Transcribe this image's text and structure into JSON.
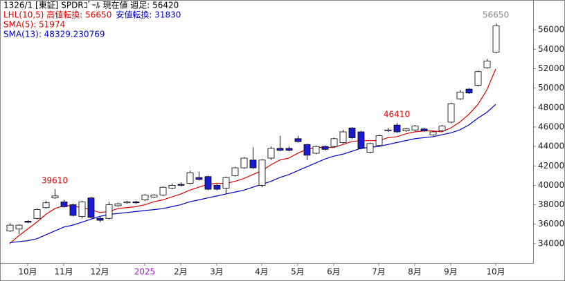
{
  "chart_data": {
    "type": "candlestick",
    "title": "1326/1 [東証] SPDRｺﾞｰﾙ 現在値 週足: 56420",
    "indicator_line": {
      "high": {
        "text": "LHL(10,5) 高値転換: 56650",
        "color": "#e00000"
      },
      "low": {
        "text": "安値転換: 31830",
        "color": "#0000cc"
      }
    },
    "categories": [
      null,
      null,
      "10月",
      null,
      null,
      null,
      "11月",
      null,
      null,
      null,
      "12月",
      null,
      null,
      null,
      null,
      "2025",
      null,
      null,
      null,
      "2月",
      null,
      null,
      null,
      "3月",
      null,
      null,
      null,
      null,
      "4月",
      null,
      null,
      null,
      "5月",
      null,
      null,
      null,
      "6月",
      null,
      null,
      null,
      null,
      "7月",
      null,
      null,
      null,
      "8月",
      null,
      null,
      null,
      "9月",
      null,
      null,
      null,
      null,
      "10月"
    ],
    "open": [
      35300,
      35500,
      36300,
      36600,
      37700,
      38700,
      38300,
      38000,
      36800,
      38700,
      36600,
      36600,
      37900,
      38200,
      38300,
      38500,
      38800,
      39000,
      39700,
      40100,
      40200,
      40800,
      40900,
      40000,
      39700,
      41000,
      41800,
      42600,
      40000,
      42800,
      43800,
      43800,
      44800,
      44200,
      43300,
      44000,
      44000,
      44400,
      45900,
      45500,
      43400,
      44100,
      45600,
      46200,
      45600,
      45700,
      45800,
      45200,
      45600,
      46500,
      48900,
      49900,
      50300,
      52100,
      53700
    ],
    "high": [
      36100,
      36000,
      36400,
      37600,
      38400,
      39610,
      38500,
      38100,
      38400,
      38800,
      36800,
      38300,
      38200,
      38400,
      38400,
      39100,
      39100,
      39900,
      40200,
      40300,
      41500,
      41400,
      41000,
      40100,
      40900,
      41900,
      42900,
      43900,
      42700,
      44000,
      45100,
      44000,
      45100,
      44300,
      44100,
      44100,
      44900,
      45700,
      46000,
      45600,
      44400,
      45200,
      45900,
      46410,
      45900,
      46200,
      45900,
      45600,
      46200,
      48500,
      49800,
      50000,
      51800,
      53000,
      56650
    ],
    "low": [
      35200,
      35000,
      36100,
      36500,
      37600,
      38600,
      37700,
      36800,
      36600,
      36600,
      36200,
      36500,
      37800,
      38100,
      38100,
      38400,
      38700,
      38900,
      39600,
      39900,
      40100,
      40500,
      39500,
      39500,
      39100,
      40900,
      41700,
      41700,
      39800,
      42600,
      43500,
      43500,
      44400,
      42600,
      43200,
      43600,
      43900,
      44300,
      44800,
      43700,
      43300,
      44000,
      45500,
      45400,
      45500,
      45600,
      45500,
      45000,
      45500,
      46400,
      48800,
      49400,
      50200,
      52000,
      53600
    ],
    "close": [
      35900,
      35900,
      36200,
      37500,
      38200,
      38900,
      37800,
      36900,
      38300,
      36700,
      36400,
      38000,
      38100,
      38300,
      38200,
      39000,
      39000,
      39800,
      40000,
      40000,
      41300,
      40600,
      39600,
      39600,
      40800,
      41800,
      42800,
      41800,
      42600,
      43800,
      43600,
      43600,
      44500,
      43100,
      44000,
      43700,
      44800,
      45500,
      44900,
      43800,
      44300,
      45100,
      45700,
      45500,
      45800,
      46100,
      45600,
      45500,
      46100,
      48400,
      49600,
      49500,
      51700,
      52800,
      56420
    ],
    "high_labels": [
      null,
      null,
      null,
      null,
      null,
      "39610",
      null,
      null,
      null,
      null,
      null,
      null,
      null,
      null,
      null,
      null,
      null,
      null,
      null,
      null,
      null,
      null,
      null,
      null,
      null,
      null,
      null,
      null,
      null,
      null,
      null,
      null,
      null,
      null,
      null,
      null,
      null,
      null,
      null,
      null,
      null,
      null,
      null,
      "46410",
      null,
      null,
      null,
      null,
      null,
      null,
      null,
      null,
      null,
      null,
      "56650"
    ],
    "up_color": "#ffffff",
    "down_color": "#1a1ad0",
    "sma_series": [
      {
        "name": "SMA(5): 51974",
        "color": "#e00000",
        "values": [
          34000,
          34800,
          35500,
          36200,
          37000,
          37600,
          37900,
          37900,
          37700,
          37500,
          37200,
          37300,
          37600,
          37700,
          37800,
          38000,
          38300,
          38500,
          38800,
          39100,
          39500,
          39800,
          40100,
          40200,
          40200,
          40400,
          40700,
          41100,
          41500,
          42100,
          42600,
          42800,
          43300,
          43700,
          43900,
          43900,
          43900,
          44200,
          44500,
          44600,
          44600,
          44600,
          44900,
          45000,
          45300,
          45500,
          45600,
          45600,
          45500,
          45900,
          46500,
          47300,
          48300,
          49800,
          51974
        ]
      },
      {
        "name": "SMA(13): 48329.230769",
        "color": "#0000cc",
        "values": [
          34100,
          34200,
          34300,
          34500,
          34900,
          35300,
          35700,
          35900,
          36200,
          36500,
          36800,
          37000,
          37100,
          37200,
          37300,
          37400,
          37500,
          37600,
          37800,
          38000,
          38300,
          38500,
          38700,
          38900,
          39100,
          39300,
          39500,
          39800,
          40100,
          40400,
          40800,
          41100,
          41500,
          41900,
          42300,
          42700,
          43000,
          43200,
          43500,
          43800,
          43900,
          44000,
          44200,
          44400,
          44600,
          44800,
          44900,
          45000,
          45200,
          45400,
          45700,
          46200,
          46900,
          47500,
          48329.230769
        ]
      }
    ],
    "ylim": [
      32000,
      59000
    ],
    "yticks": [
      34000,
      36000,
      38000,
      40000,
      42000,
      44000,
      46000,
      48000,
      50000,
      52000,
      54000,
      56000
    ]
  }
}
